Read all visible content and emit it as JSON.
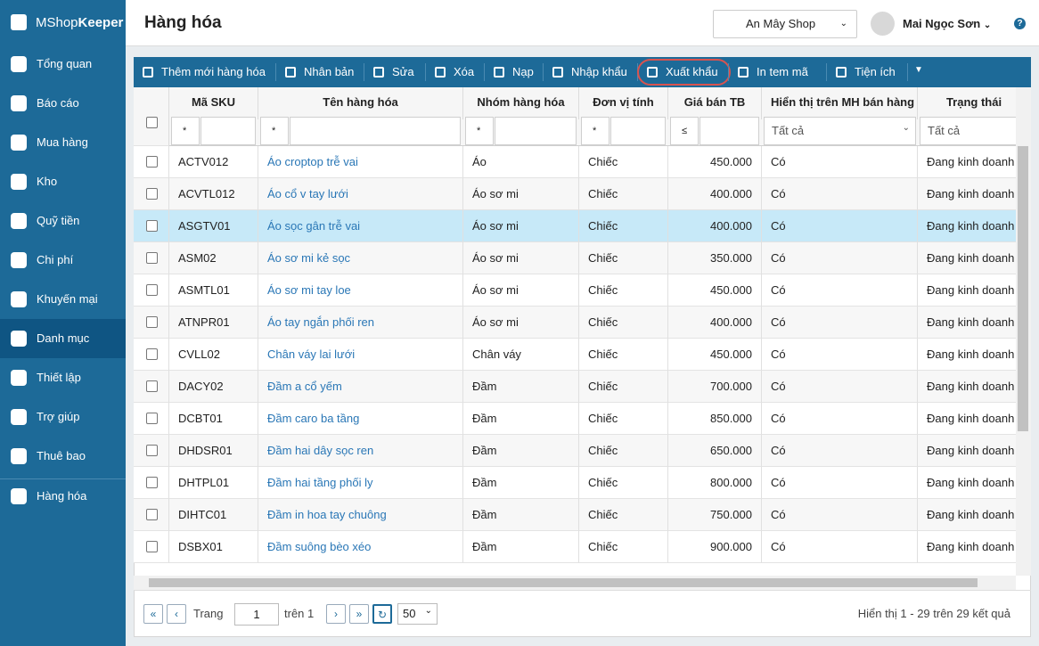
{
  "sidebar": {
    "logo": {
      "part1": "MShop",
      "part2": "Keeper"
    },
    "menu": [
      "Tổng quan",
      "Báo cáo",
      "Mua hàng",
      "Kho",
      "Quỹ tiền",
      "Chi phí",
      "Khuyến mại",
      "Danh mục",
      "Thiết lập",
      "Trợ giúp",
      "Thuê bao"
    ],
    "active": 7,
    "bottom": "Hàng hóa"
  },
  "header": {
    "title": "Hàng hóa",
    "shop": "An Mây Shop",
    "user": "Mai Ngọc Sơn",
    "help": "?"
  },
  "toolbar": [
    "Thêm mới hàng hóa",
    "Nhân bản",
    "Sửa",
    "Xóa",
    "Nạp",
    "Nhập khẩu",
    "Xuất khẩu",
    "In tem mã",
    "Tiện ích"
  ],
  "highlighted_tool": 6,
  "table": {
    "columns": [
      "Mã SKU",
      "Tên hàng hóa",
      "Nhóm hàng hóa",
      "Đơn vị tính",
      "Giá bán TB",
      "Hiển thị trên MH bán hàng",
      "Trạng thái"
    ],
    "filters": [
      "*",
      "*",
      "*",
      "*",
      "≤",
      "Tất cả",
      "Tất cả"
    ],
    "selected_row": 2,
    "rows": [
      [
        "ACTV012",
        "Áo croptop trễ vai",
        "Áo",
        "Chiếc",
        "450.000",
        "Có",
        "Đang kinh doanh"
      ],
      [
        "ACVTL012",
        "Áo cổ v tay lưới",
        "Áo sơ mi",
        "Chiếc",
        "400.000",
        "Có",
        "Đang kinh doanh"
      ],
      [
        "ASGTV01",
        "Áo sọc gân trễ vai",
        "Áo sơ mi",
        "Chiếc",
        "400.000",
        "Có",
        "Đang kinh doanh"
      ],
      [
        "ASM02",
        "Áo sơ mi kẻ sọc",
        "Áo sơ mi",
        "Chiếc",
        "350.000",
        "Có",
        "Đang kinh doanh"
      ],
      [
        "ASMTL01",
        "Áo sơ mi tay loe",
        "Áo sơ mi",
        "Chiếc",
        "450.000",
        "Có",
        "Đang kinh doanh"
      ],
      [
        "ATNPR01",
        "Áo tay ngắn phối ren",
        "Áo sơ mi",
        "Chiếc",
        "400.000",
        "Có",
        "Đang kinh doanh"
      ],
      [
        "CVLL02",
        "Chân váy lai lưới",
        "Chân váy",
        "Chiếc",
        "450.000",
        "Có",
        "Đang kinh doanh"
      ],
      [
        "DACY02",
        "Đầm a cổ yếm",
        "Đầm",
        "Chiếc",
        "700.000",
        "Có",
        "Đang kinh doanh"
      ],
      [
        "DCBT01",
        "Đầm caro ba tầng",
        "Đầm",
        "Chiếc",
        "850.000",
        "Có",
        "Đang kinh doanh"
      ],
      [
        "DHDSR01",
        "Đầm hai dây sọc ren",
        "Đầm",
        "Chiếc",
        "650.000",
        "Có",
        "Đang kinh doanh"
      ],
      [
        "DHTPL01",
        "Đầm hai tầng phối ly",
        "Đầm",
        "Chiếc",
        "800.000",
        "Có",
        "Đang kinh doanh"
      ],
      [
        "DIHTC01",
        "Đầm in hoa tay chuông",
        "Đầm",
        "Chiếc",
        "750.000",
        "Có",
        "Đang kinh doanh"
      ],
      [
        "DSBX01",
        "Đầm suông bèo xéo",
        "Đầm",
        "Chiếc",
        "900.000",
        "Có",
        "Đang kinh doanh"
      ]
    ]
  },
  "pager": {
    "page_label": "Trang",
    "page": "1",
    "of": "trên 1",
    "size": "50",
    "summary": "Hiển thị 1 - 29 trên 29 kết quả"
  }
}
